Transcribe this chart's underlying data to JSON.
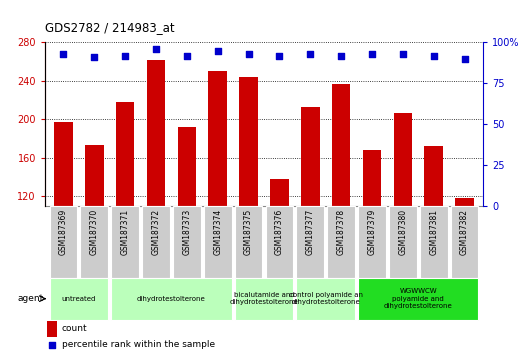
{
  "title": "GDS2782 / 214983_at",
  "samples": [
    "GSM187369",
    "GSM187370",
    "GSM187371",
    "GSM187372",
    "GSM187373",
    "GSM187374",
    "GSM187375",
    "GSM187376",
    "GSM187377",
    "GSM187378",
    "GSM187379",
    "GSM187380",
    "GSM187381",
    "GSM187382"
  ],
  "counts": [
    197,
    173,
    218,
    262,
    192,
    250,
    244,
    138,
    213,
    237,
    168,
    207,
    172,
    118
  ],
  "percentiles": [
    93,
    91,
    92,
    96,
    92,
    95,
    93,
    92,
    93,
    92,
    93,
    93,
    92,
    90
  ],
  "ylim_left": [
    110,
    280
  ],
  "yticks_left": [
    120,
    160,
    200,
    240,
    280
  ],
  "ylim_right": [
    0,
    100
  ],
  "yticks_right": [
    0,
    25,
    50,
    75,
    100
  ],
  "bar_color": "#cc0000",
  "dot_color": "#0000cc",
  "group_defs": [
    {
      "label": "untreated",
      "start": 0,
      "end": 1,
      "color": "#bbffbb"
    },
    {
      "label": "dihydrotestolterone",
      "start": 2,
      "end": 5,
      "color": "#bbffbb"
    },
    {
      "label": "bicalutamide and\ndihydrotestolterone",
      "start": 6,
      "end": 7,
      "color": "#bbffbb"
    },
    {
      "label": "control polyamide an\ndihydrotestolterone",
      "start": 8,
      "end": 9,
      "color": "#bbffbb"
    },
    {
      "label": "WGWWCW\npolyamide and\ndihydrotestolterone",
      "start": 10,
      "end": 13,
      "color": "#22dd22"
    }
  ],
  "left_axis_color": "#cc0000",
  "right_axis_color": "#0000cc",
  "tick_label_bg": "#cccccc",
  "legend_count_label": "count",
  "legend_percentile_label": "percentile rank within the sample"
}
